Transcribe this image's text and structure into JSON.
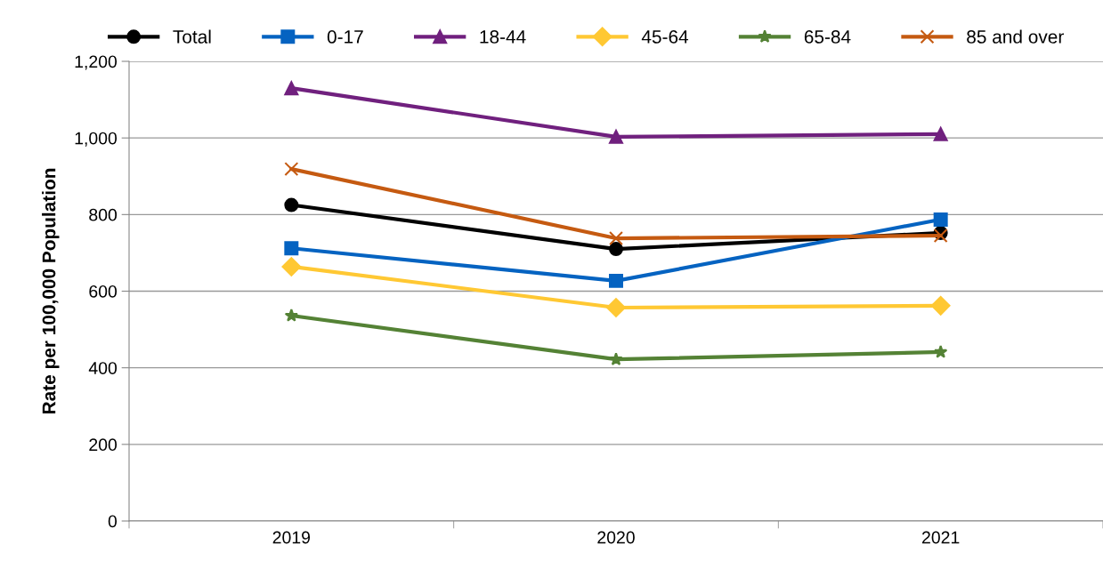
{
  "chart_data": {
    "type": "line",
    "ylabel": "Rate per 100,000 Population",
    "categories": [
      "2019",
      "2020",
      "2021"
    ],
    "series": [
      {
        "name": "Total",
        "color": "#000000",
        "marker": "circle",
        "values": [
          825,
          710,
          752
        ]
      },
      {
        "name": "0-17",
        "color": "#0563c1",
        "marker": "square",
        "values": [
          712,
          627,
          787
        ]
      },
      {
        "name": "18-44",
        "color": "#70207e",
        "marker": "triangle",
        "values": [
          1130,
          1003,
          1010
        ]
      },
      {
        "name": "45-64",
        "color": "#ffc833",
        "marker": "diamond",
        "values": [
          664,
          557,
          562
        ]
      },
      {
        "name": "65-84",
        "color": "#548235",
        "marker": "star",
        "values": [
          536,
          422,
          441
        ]
      },
      {
        "name": "85 and over",
        "color": "#c55a11",
        "marker": "cross",
        "values": [
          919,
          738,
          745
        ]
      }
    ],
    "ylim": [
      0,
      1200
    ],
    "yticks": [
      {
        "value": 0,
        "label": "0"
      },
      {
        "value": 200,
        "label": "200"
      },
      {
        "value": 400,
        "label": "400"
      },
      {
        "value": 600,
        "label": "600"
      },
      {
        "value": 800,
        "label": "800"
      },
      {
        "value": 1000,
        "label": "1,000"
      },
      {
        "value": 1200,
        "label": "1,200"
      }
    ],
    "grid": "y",
    "legend": "top",
    "line_style": "solid"
  }
}
